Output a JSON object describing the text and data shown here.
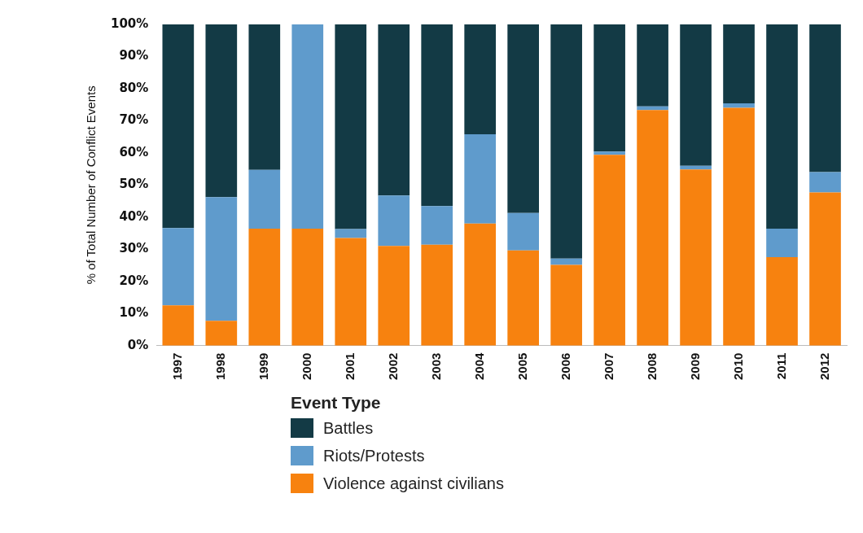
{
  "chart_data": {
    "type": "bar",
    "stacked": true,
    "ylabel": "% of Total Number of Conflict Events",
    "legend_title": "Event Type",
    "legend": "bottom",
    "categories": [
      "1997",
      "1998",
      "1999",
      "2000",
      "2001",
      "2002",
      "2003",
      "2004",
      "2005",
      "2006",
      "2007",
      "2008",
      "2009",
      "2010",
      "2011",
      "2012"
    ],
    "ylim": [
      0,
      100
    ],
    "yticks": [
      {
        "value": 0,
        "label": "0%"
      },
      {
        "value": 10,
        "label": "10%"
      },
      {
        "value": 20,
        "label": "20%"
      },
      {
        "value": 30,
        "label": "30%"
      },
      {
        "value": 40,
        "label": "40%"
      },
      {
        "value": 50,
        "label": "50%"
      },
      {
        "value": 60,
        "label": "60%"
      },
      {
        "value": 70,
        "label": "70%"
      },
      {
        "value": 80,
        "label": "80%"
      },
      {
        "value": 90,
        "label": "90%"
      },
      {
        "value": 100,
        "label": "100%"
      }
    ],
    "series": [
      {
        "name": "Violence against civilians",
        "color": "#f7820f",
        "values": [
          12.5,
          7.7,
          36.4,
          36.4,
          33.5,
          31,
          31.4,
          38,
          29.6,
          25.1,
          59.4,
          73.3,
          54.8,
          74,
          27.5,
          47.7
        ]
      },
      {
        "name": "Riots/Protests",
        "color": "#5f9bcc",
        "values": [
          24.1,
          38.5,
          18.3,
          63.6,
          2.8,
          15.7,
          12,
          27.8,
          11.7,
          2,
          1,
          1.2,
          1.2,
          1.4,
          8.9,
          6.3
        ]
      },
      {
        "name": "Battles",
        "color": "#133a45",
        "values": [
          63.4,
          53.8,
          45.3,
          0,
          63.7,
          53.3,
          56.6,
          34.2,
          58.7,
          72.9,
          39.6,
          25.5,
          44,
          24.6,
          63.6,
          46
        ]
      }
    ]
  }
}
